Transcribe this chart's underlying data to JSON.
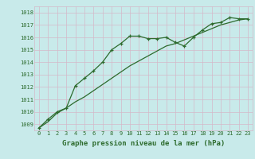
{
  "title": "Graphe pression niveau de la mer (hPa)",
  "bg_color": "#c8eaea",
  "grid_color": "#d4b8c8",
  "line_color": "#2d6b2d",
  "axes_bg": "#c8eaea",
  "xlim": [
    -0.5,
    23.5
  ],
  "ylim": [
    1008.5,
    1018.5
  ],
  "yticks": [
    1009,
    1010,
    1011,
    1012,
    1013,
    1014,
    1015,
    1016,
    1017,
    1018
  ],
  "xticks": [
    0,
    1,
    2,
    3,
    4,
    5,
    6,
    7,
    8,
    9,
    10,
    11,
    12,
    13,
    14,
    15,
    16,
    17,
    18,
    19,
    20,
    21,
    22,
    23
  ],
  "series1_x": [
    0,
    1,
    2,
    3,
    4,
    5,
    6,
    7,
    8,
    9,
    10,
    11,
    12,
    13,
    14,
    15,
    16,
    17,
    18,
    19,
    20,
    21,
    22,
    23
  ],
  "series1_y": [
    1008.7,
    1009.4,
    1010.0,
    1010.3,
    1012.1,
    1012.7,
    1013.3,
    1014.0,
    1015.0,
    1015.5,
    1016.1,
    1016.1,
    1015.9,
    1015.9,
    1016.0,
    1015.6,
    1015.3,
    1016.0,
    1016.6,
    1017.1,
    1017.2,
    1017.6,
    1017.5,
    1017.5
  ],
  "series2_x": [
    0,
    1,
    2,
    3,
    4,
    5,
    6,
    7,
    8,
    9,
    10,
    11,
    12,
    13,
    14,
    15,
    16,
    17,
    18,
    19,
    20,
    21,
    22,
    23
  ],
  "series2_y": [
    1008.7,
    1009.2,
    1009.9,
    1010.3,
    1010.8,
    1011.2,
    1011.7,
    1012.2,
    1012.7,
    1013.2,
    1013.7,
    1014.1,
    1014.5,
    1014.9,
    1015.3,
    1015.5,
    1015.8,
    1016.1,
    1016.4,
    1016.7,
    1017.0,
    1017.2,
    1017.4,
    1017.5
  ],
  "title_fontsize": 6.5,
  "tick_fontsize": 5.0
}
